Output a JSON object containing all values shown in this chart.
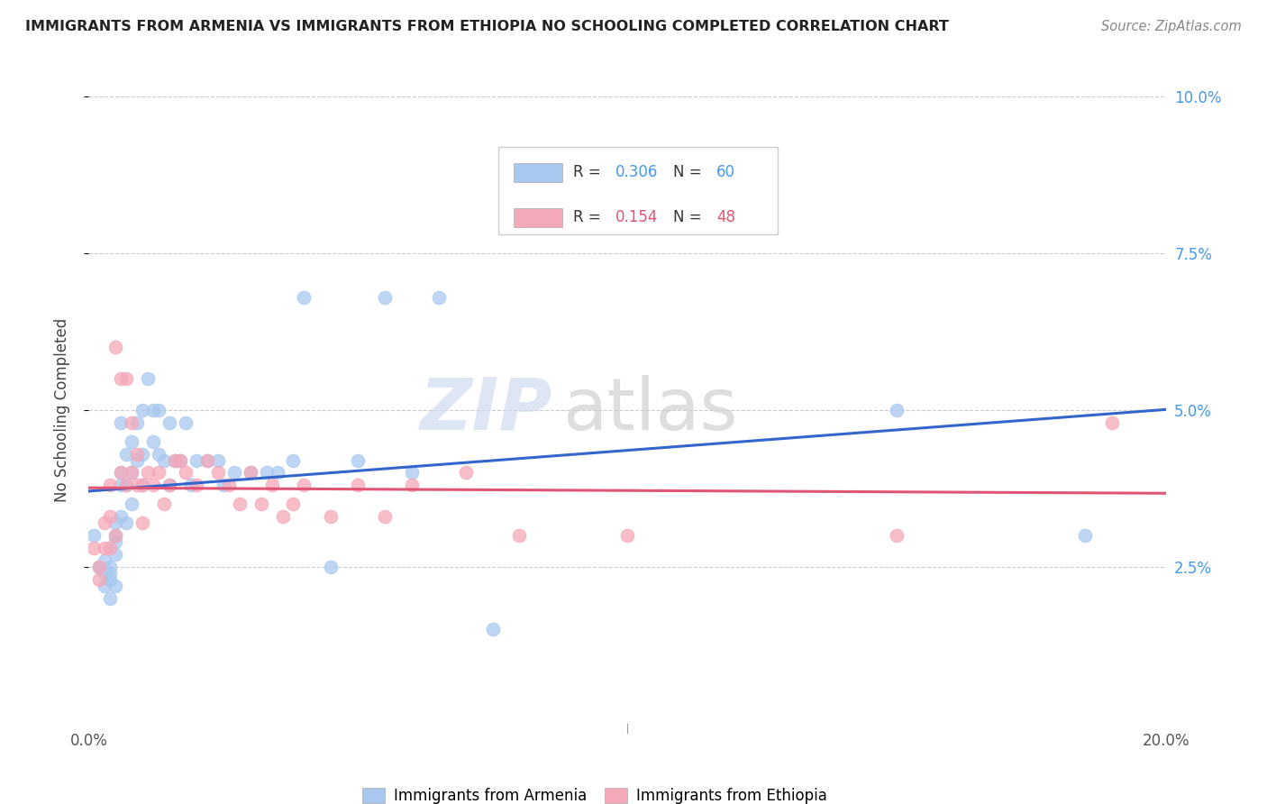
{
  "title": "IMMIGRANTS FROM ARMENIA VS IMMIGRANTS FROM ETHIOPIA NO SCHOOLING COMPLETED CORRELATION CHART",
  "source": "Source: ZipAtlas.com",
  "ylabel": "No Schooling Completed",
  "xlim": [
    0.0,
    0.2
  ],
  "ylim": [
    0.0,
    0.1
  ],
  "armenia_color": "#A8C8F0",
  "ethiopia_color": "#F5A8B8",
  "armenia_line_color": "#3366CC",
  "ethiopia_line_color": "#E05575",
  "right_axis_color": "#4499EE",
  "legend_R_armenia": "0.306",
  "legend_N_armenia": "60",
  "legend_R_ethiopia": "0.154",
  "legend_N_ethiopia": "48",
  "watermark_zip": "ZIP",
  "watermark_atlas": "atlas",
  "armenia_x": [
    0.001,
    0.002,
    0.002,
    0.003,
    0.003,
    0.003,
    0.004,
    0.004,
    0.004,
    0.004,
    0.005,
    0.005,
    0.005,
    0.005,
    0.005,
    0.006,
    0.006,
    0.006,
    0.006,
    0.007,
    0.007,
    0.007,
    0.008,
    0.008,
    0.008,
    0.009,
    0.009,
    0.01,
    0.01,
    0.01,
    0.011,
    0.012,
    0.012,
    0.013,
    0.013,
    0.014,
    0.015,
    0.015,
    0.016,
    0.017,
    0.018,
    0.019,
    0.02,
    0.022,
    0.024,
    0.025,
    0.027,
    0.03,
    0.033,
    0.035,
    0.038,
    0.04,
    0.045,
    0.05,
    0.055,
    0.06,
    0.065,
    0.075,
    0.15,
    0.185
  ],
  "armenia_y": [
    0.03,
    0.025,
    0.025,
    0.026,
    0.024,
    0.022,
    0.025,
    0.024,
    0.023,
    0.02,
    0.032,
    0.03,
    0.029,
    0.027,
    0.022,
    0.048,
    0.04,
    0.038,
    0.033,
    0.043,
    0.038,
    0.032,
    0.045,
    0.04,
    0.035,
    0.048,
    0.042,
    0.05,
    0.043,
    0.038,
    0.055,
    0.05,
    0.045,
    0.05,
    0.043,
    0.042,
    0.048,
    0.038,
    0.042,
    0.042,
    0.048,
    0.038,
    0.042,
    0.042,
    0.042,
    0.038,
    0.04,
    0.04,
    0.04,
    0.04,
    0.042,
    0.068,
    0.025,
    0.042,
    0.068,
    0.04,
    0.068,
    0.015,
    0.05,
    0.03
  ],
  "ethiopia_x": [
    0.001,
    0.002,
    0.002,
    0.003,
    0.003,
    0.004,
    0.004,
    0.004,
    0.005,
    0.005,
    0.006,
    0.006,
    0.007,
    0.007,
    0.008,
    0.008,
    0.009,
    0.009,
    0.01,
    0.01,
    0.011,
    0.012,
    0.013,
    0.014,
    0.015,
    0.016,
    0.017,
    0.018,
    0.02,
    0.022,
    0.024,
    0.026,
    0.028,
    0.03,
    0.032,
    0.034,
    0.036,
    0.038,
    0.04,
    0.045,
    0.05,
    0.055,
    0.06,
    0.07,
    0.08,
    0.1,
    0.15,
    0.19
  ],
  "ethiopia_y": [
    0.028,
    0.025,
    0.023,
    0.032,
    0.028,
    0.038,
    0.033,
    0.028,
    0.06,
    0.03,
    0.055,
    0.04,
    0.055,
    0.038,
    0.048,
    0.04,
    0.043,
    0.038,
    0.038,
    0.032,
    0.04,
    0.038,
    0.04,
    0.035,
    0.038,
    0.042,
    0.042,
    0.04,
    0.038,
    0.042,
    0.04,
    0.038,
    0.035,
    0.04,
    0.035,
    0.038,
    0.033,
    0.035,
    0.038,
    0.033,
    0.038,
    0.033,
    0.038,
    0.04,
    0.03,
    0.03,
    0.03,
    0.048
  ]
}
